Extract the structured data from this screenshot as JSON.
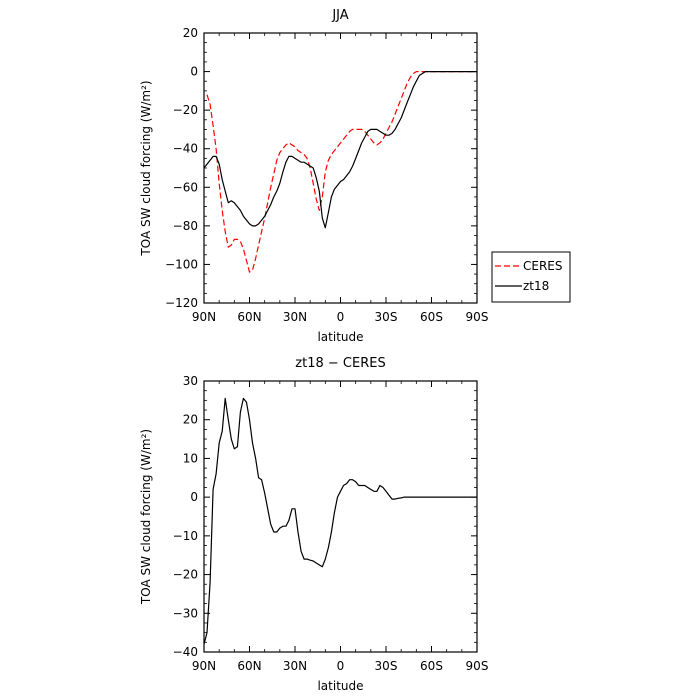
{
  "chart_data": [
    {
      "type": "line",
      "title": "JJA",
      "xlabel": "latitude",
      "ylabel": "TOA SW cloud forcing (W/m²)",
      "xlim": [
        90,
        -90
      ],
      "ylim": [
        -120,
        20
      ],
      "x_ticks": [
        90,
        60,
        30,
        0,
        -30,
        -60,
        -90
      ],
      "x_tick_labels": [
        "90N",
        "60N",
        "30N",
        "0",
        "30S",
        "60S",
        "90S"
      ],
      "y_ticks": [
        20,
        0,
        -20,
        -40,
        -60,
        -80,
        -100,
        -120
      ],
      "y_tick_labels": [
        "20",
        "0",
        "−20",
        "−40",
        "−60",
        "−80",
        "−100",
        "−120"
      ],
      "legend": {
        "placement": "outside-right"
      },
      "series": [
        {
          "name": "CERES",
          "color": "#ff0000",
          "dash": "dashed",
          "x": [
            88,
            86,
            84,
            82,
            80,
            78,
            76,
            74,
            72,
            70,
            68,
            66,
            64,
            62,
            60,
            58,
            56,
            54,
            52,
            50,
            48,
            46,
            44,
            42,
            40,
            38,
            36,
            34,
            32,
            30,
            28,
            26,
            24,
            22,
            20,
            18,
            16,
            14,
            12,
            10,
            8,
            6,
            4,
            2,
            0,
            -2,
            -4,
            -6,
            -8,
            -10,
            -12,
            -14,
            -16,
            -18,
            -20,
            -22,
            -24,
            -26,
            -28,
            -30,
            -32,
            -34,
            -36,
            -38,
            -40,
            -42,
            -44,
            -46,
            -48,
            -50,
            -52,
            -54,
            -56,
            -58,
            -60,
            -62,
            -64,
            -66,
            -68,
            -70,
            -72,
            -74,
            -76,
            -78,
            -80,
            -82,
            -84,
            -86,
            -88
          ],
          "y": [
            -12,
            -17,
            -28,
            -40,
            -58,
            -72,
            -83,
            -91,
            -90,
            -87,
            -87,
            -88,
            -92,
            -98,
            -104,
            -103,
            -97,
            -90,
            -83,
            -76,
            -68,
            -60,
            -53,
            -46,
            -42,
            -40,
            -38,
            -37,
            -38,
            -39,
            -41,
            -42,
            -43,
            -45,
            -50,
            -58,
            -66,
            -72,
            -65,
            -52,
            -46,
            -43,
            -41,
            -39,
            -37,
            -35,
            -33,
            -31,
            -30,
            -30,
            -30,
            -30,
            -31,
            -33,
            -35,
            -37,
            -38,
            -37,
            -35,
            -32,
            -29,
            -26,
            -22,
            -18,
            -14,
            -10,
            -6,
            -3,
            -1,
            0,
            0,
            0,
            0,
            0,
            0,
            0,
            0,
            0,
            0,
            0,
            0,
            0,
            0,
            0,
            0,
            0,
            0,
            0,
            0
          ]
        },
        {
          "name": "zt18",
          "color": "#000000",
          "dash": "solid",
          "x": [
            90,
            88,
            86,
            84,
            82,
            80,
            78,
            76,
            74,
            72,
            70,
            68,
            66,
            64,
            62,
            60,
            58,
            56,
            54,
            52,
            50,
            48,
            46,
            44,
            42,
            40,
            38,
            36,
            34,
            32,
            30,
            28,
            26,
            24,
            22,
            20,
            18,
            16,
            14,
            12,
            10,
            8,
            6,
            4,
            2,
            0,
            -2,
            -4,
            -6,
            -8,
            -10,
            -12,
            -14,
            -16,
            -18,
            -20,
            -22,
            -24,
            -26,
            -28,
            -30,
            -32,
            -34,
            -36,
            -38,
            -40,
            -42,
            -44,
            -46,
            -48,
            -50,
            -52,
            -54,
            -56,
            -58,
            -60,
            -62,
            -64,
            -66,
            -68,
            -70,
            -72,
            -74,
            -76,
            -78,
            -80,
            -82,
            -84,
            -86,
            -88,
            -90
          ],
          "y": [
            -50,
            -48,
            -46,
            -44,
            -44,
            -48,
            -56,
            -62,
            -68,
            -67,
            -68,
            -70,
            -72,
            -75,
            -77,
            -79,
            -80,
            -80,
            -79,
            -77,
            -75,
            -72,
            -69,
            -65,
            -62,
            -58,
            -52,
            -47,
            -44,
            -44,
            -45,
            -46,
            -47,
            -47,
            -48,
            -49,
            -50,
            -55,
            -62,
            -76,
            -81,
            -73,
            -65,
            -61,
            -59,
            -57,
            -56,
            -54,
            -52,
            -49,
            -45,
            -41,
            -37,
            -34,
            -31,
            -30,
            -30,
            -30,
            -31,
            -32,
            -33,
            -33,
            -32,
            -30,
            -27,
            -24,
            -20,
            -16,
            -12,
            -8,
            -5,
            -2,
            -1,
            0,
            0,
            0,
            0,
            0,
            0,
            0,
            0,
            0,
            0,
            0,
            0,
            0,
            0,
            0,
            0,
            0,
            0
          ]
        }
      ]
    },
    {
      "type": "line",
      "title": "zt18 − CERES",
      "xlabel": "latitude",
      "ylabel": "TOA SW cloud forcing (W/m²)",
      "xlim": [
        90,
        -90
      ],
      "ylim": [
        -40,
        30
      ],
      "x_ticks": [
        90,
        60,
        30,
        0,
        -30,
        -60,
        -90
      ],
      "x_tick_labels": [
        "90N",
        "60N",
        "30N",
        "0",
        "30S",
        "60S",
        "90S"
      ],
      "y_ticks": [
        30,
        20,
        10,
        0,
        -10,
        -20,
        -30,
        -40
      ],
      "y_tick_labels": [
        "30",
        "20",
        "10",
        "0",
        "−10",
        "−20",
        "−30",
        "−40"
      ],
      "series": [
        {
          "color": "#000000",
          "dash": "solid",
          "x": [
            90,
            88,
            86,
            84,
            82,
            80,
            78,
            76,
            74,
            72,
            70,
            68,
            66,
            64,
            62,
            60,
            58,
            56,
            54,
            52,
            50,
            48,
            46,
            44,
            42,
            40,
            38,
            36,
            34,
            32,
            30,
            28,
            26,
            24,
            22,
            20,
            18,
            16,
            14,
            12,
            10,
            8,
            6,
            4,
            2,
            0,
            -2,
            -4,
            -6,
            -8,
            -10,
            -12,
            -14,
            -16,
            -18,
            -20,
            -22,
            -24,
            -26,
            -28,
            -30,
            -32,
            -34,
            -36,
            -38,
            -40,
            -42,
            -44,
            -46,
            -48,
            -50,
            -52,
            -54,
            -56,
            -58,
            -60,
            -62,
            -64,
            -66,
            -68,
            -70,
            -72,
            -74,
            -76,
            -78,
            -80,
            -82,
            -84,
            -86,
            -88,
            -90
          ],
          "y": [
            -38,
            -35,
            -22,
            2,
            6,
            14,
            17,
            25.5,
            20,
            15,
            12.5,
            13,
            22,
            25.5,
            24.5,
            20,
            14,
            10,
            5,
            4.5,
            1,
            -3,
            -7,
            -9,
            -9,
            -8,
            -7.5,
            -7.5,
            -6,
            -3,
            -3,
            -9,
            -14,
            -16,
            -16,
            -16.3,
            -16.5,
            -17,
            -17.5,
            -18,
            -16,
            -13,
            -9,
            -4,
            0,
            1.5,
            3,
            3.5,
            4.5,
            4.5,
            4,
            3,
            3,
            3,
            2.5,
            2,
            1.5,
            1.5,
            3,
            2.5,
            1.5,
            0.5,
            -0.5,
            -0.5,
            -0.3,
            -0.2,
            0,
            0,
            0,
            0,
            0,
            0,
            0,
            0,
            0,
            0,
            0,
            0,
            0,
            0,
            0,
            0,
            0,
            0,
            0,
            0,
            0,
            0,
            0,
            0,
            0
          ]
        }
      ]
    }
  ]
}
